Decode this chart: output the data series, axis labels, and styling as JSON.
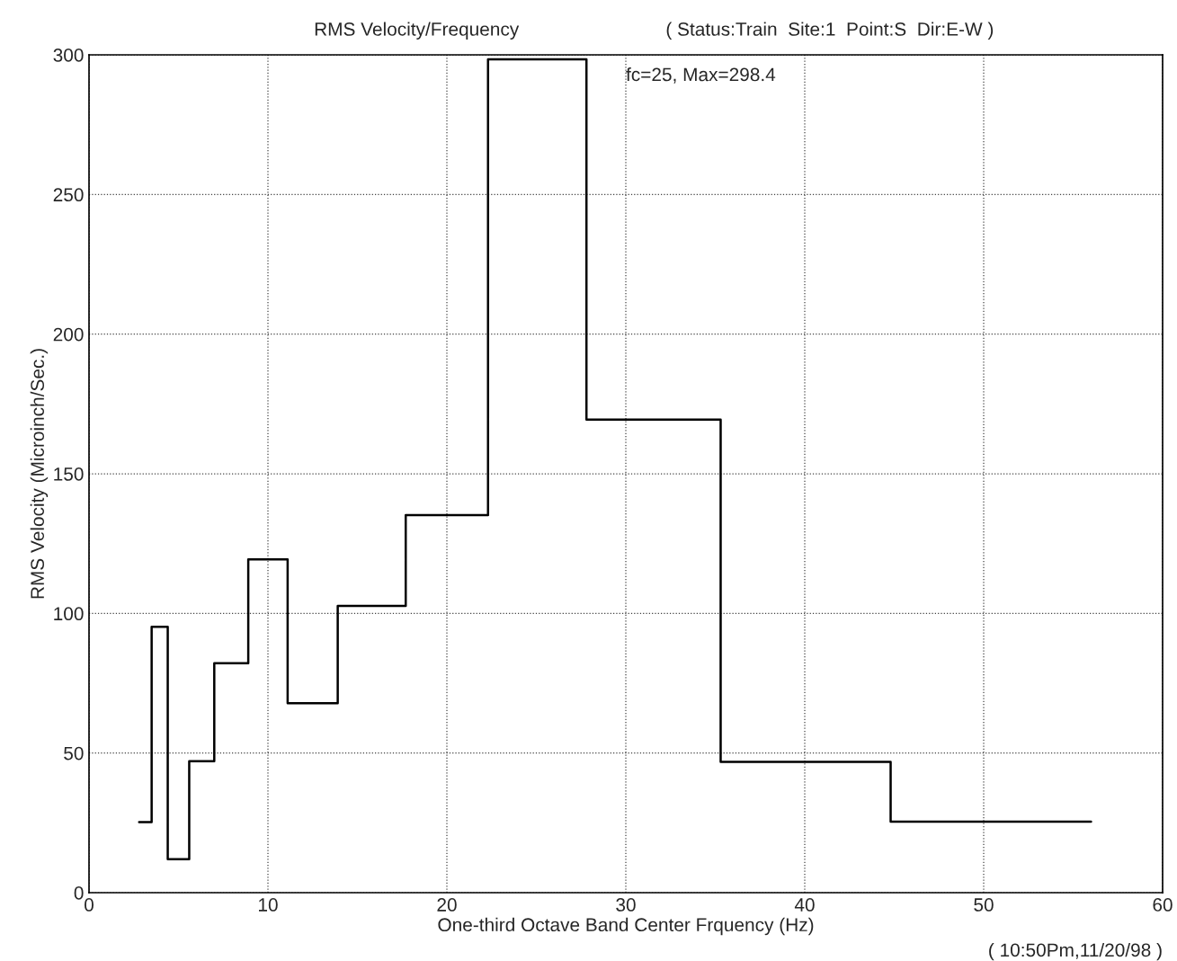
{
  "chart_data": {
    "type": "step",
    "title": "RMS Velocity/Frequency",
    "subtitle": "( Status:Train  Site:1  Point:S  Dir:E-W )",
    "xlabel": "One-third Octave Band Center Frquency (Hz)",
    "ylabel": "RMS Velocity (Microinch/Sec.)",
    "x": [
      2.8,
      3.5,
      4.4,
      5.6,
      7.0,
      8.9,
      11.1,
      13.9,
      17.7,
      22.3,
      27.8,
      35.3,
      44.8,
      56.0
    ],
    "series": [
      {
        "color": "#000000",
        "values": [
          25.3,
          95.2,
          12.0,
          47.1,
          82.2,
          119.3,
          67.8,
          102.7,
          135.2,
          298.4,
          169.4,
          46.8,
          25.4,
          25.4
        ]
      }
    ],
    "xlim": [
      0,
      60
    ],
    "xticks": [
      0,
      10,
      20,
      30,
      40,
      50,
      60
    ],
    "ylim": [
      0,
      300
    ],
    "yticks": [
      0,
      50,
      100,
      150,
      200,
      250,
      300
    ],
    "grid": true,
    "marker": "none",
    "line_style": "solid",
    "annotations": [
      "fc=25, Max=298.4",
      "( 10:50Pm,11/20/98 )"
    ]
  }
}
